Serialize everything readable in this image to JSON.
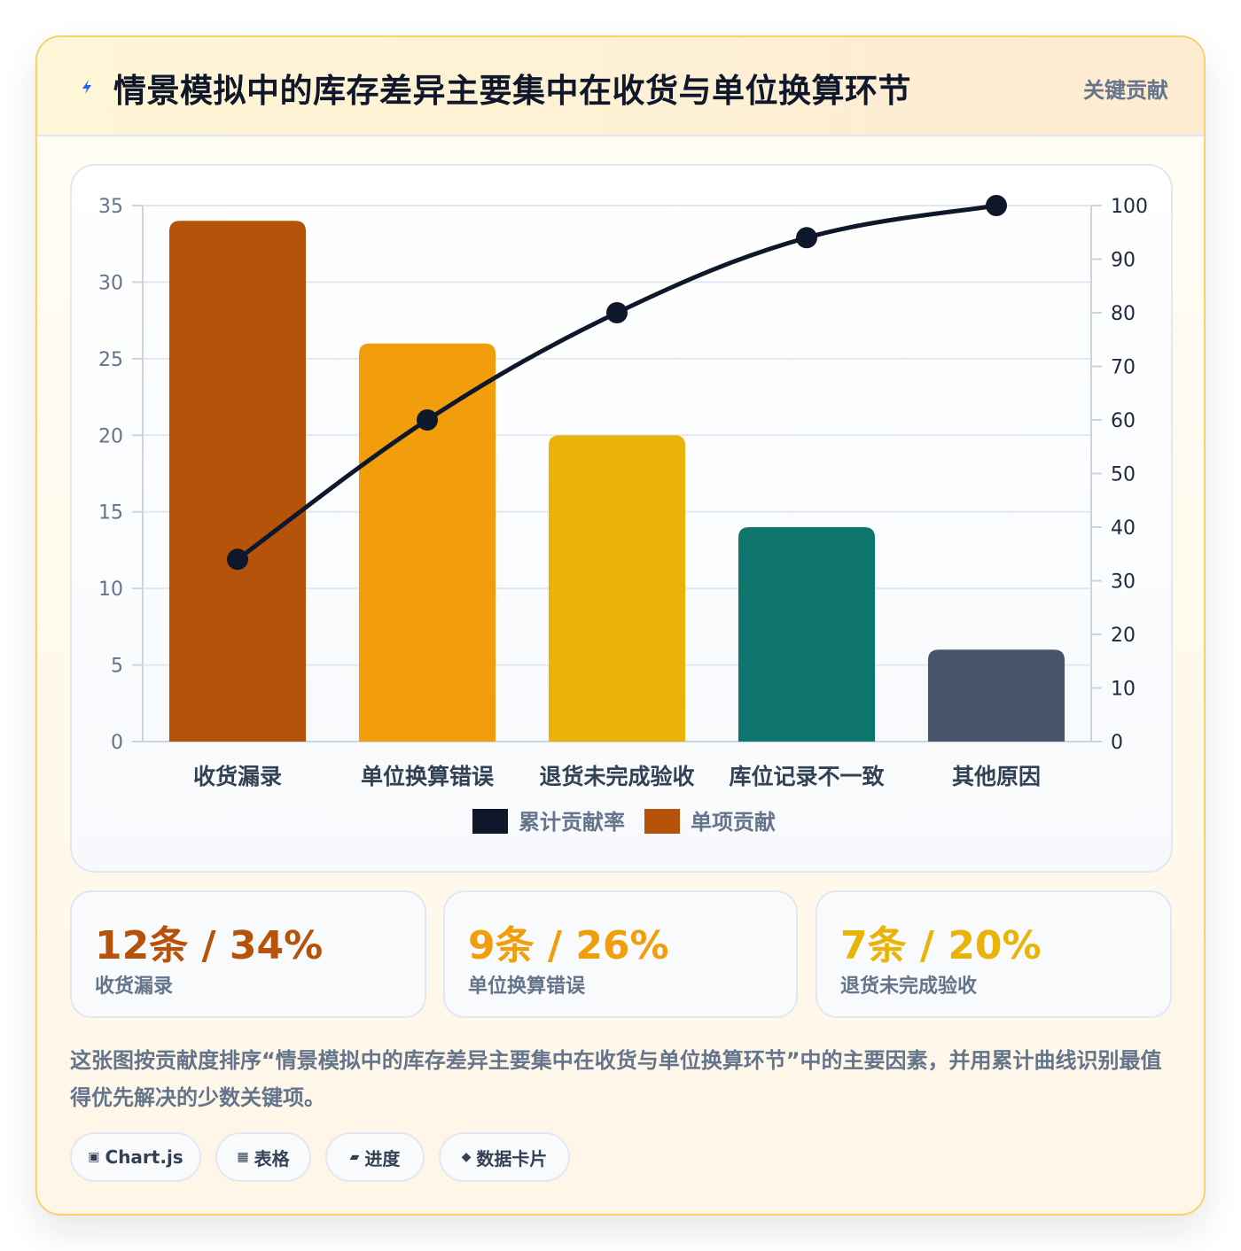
{
  "header": {
    "title": "情景模拟中的库存差异主要集中在收货与单位换算环节",
    "tag": "关键贡献",
    "icon": "lightning-icon",
    "accent": "#2563eb"
  },
  "chart_data": {
    "type": "bar",
    "categories": [
      "收货漏录",
      "单位换算错误",
      "退货未完成验收",
      "库位记录不一致",
      "其他原因"
    ],
    "series": [
      {
        "name": "单项贡献",
        "type": "bar",
        "axis": "left",
        "values": [
          34,
          26,
          20,
          14,
          6
        ],
        "colors": [
          "#b45309",
          "#f29e0c",
          "#eab308",
          "#0f766e",
          "#475569"
        ]
      },
      {
        "name": "累计贡献率",
        "type": "line",
        "axis": "right",
        "values": [
          34,
          60,
          80,
          94,
          100
        ],
        "color": "#0f172a"
      }
    ],
    "y_left": {
      "min": 0,
      "max": 35,
      "ticks": [
        "0",
        "5",
        "10",
        "15",
        "20",
        "25",
        "30",
        "35"
      ]
    },
    "y_right": {
      "min": 0,
      "max": 100,
      "ticks": [
        "0",
        "10",
        "20",
        "30",
        "40",
        "50",
        "60",
        "70",
        "80",
        "90",
        "100"
      ]
    },
    "grid": true,
    "legend": {
      "position": "bottom",
      "items": [
        "累计贡献率",
        "单项贡献"
      ]
    }
  },
  "stats": [
    {
      "value": "12条 / 34%",
      "label": "收货漏录",
      "color": "#b45309"
    },
    {
      "value": "9条 / 26%",
      "label": "单位换算错误",
      "color": "#f29e0c"
    },
    {
      "value": "7条 / 20%",
      "label": "退货未完成验收",
      "color": "#eab308"
    }
  ],
  "description": "这张图按贡献度排序“情景模拟中的库存差异主要集中在收货与单位换算环节”中的主要因素，并用累计曲线识别最值得优先解决的少数关键项。",
  "chips": [
    {
      "icon": "▣",
      "label": "Chart.js",
      "icon_name": "chart-icon"
    },
    {
      "icon": "▦",
      "label": "表格",
      "icon_name": "table-icon"
    },
    {
      "icon": "▰",
      "label": "进度",
      "icon_name": "progress-icon"
    },
    {
      "icon": "◆",
      "label": "数据卡片",
      "icon_name": "card-icon"
    }
  ]
}
